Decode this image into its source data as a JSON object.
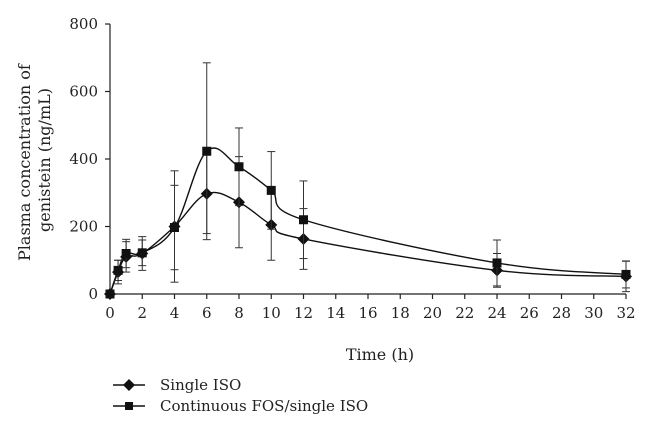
{
  "chart_data": {
    "type": "line",
    "xlabel": "Time (h)",
    "ylabel_lines": [
      "Plasma concentration of",
      "genistein (ng/mL)"
    ],
    "xlim": [
      0,
      32
    ],
    "ylim": [
      0,
      800
    ],
    "xticks": [
      0,
      2,
      4,
      6,
      8,
      10,
      12,
      14,
      16,
      18,
      20,
      22,
      24,
      26,
      28,
      30,
      32
    ],
    "yticks": [
      0,
      200,
      400,
      600,
      800
    ],
    "grid": false,
    "legend_position": "bottom-left",
    "series": [
      {
        "name": "Single ISO",
        "marker": "diamond",
        "x": [
          0,
          0.5,
          1,
          2,
          4,
          6,
          8,
          10,
          12,
          24,
          32
        ],
        "y": [
          0,
          65,
          110,
          120,
          200,
          297,
          272,
          205,
          163,
          70,
          52
        ],
        "err": [
          0,
          35,
          45,
          50,
          165,
          118,
          135,
          105,
          90,
          50,
          45
        ]
      },
      {
        "name": "Continuous FOS/single ISO",
        "marker": "square",
        "x": [
          0,
          0.5,
          1,
          2,
          4,
          6,
          8,
          10,
          12,
          24,
          32
        ],
        "y": [
          0,
          70,
          120,
          122,
          197,
          423,
          377,
          307,
          220,
          92,
          58
        ],
        "err": [
          0,
          30,
          42,
          38,
          125,
          262,
          115,
          115,
          115,
          68,
          40
        ]
      }
    ]
  }
}
